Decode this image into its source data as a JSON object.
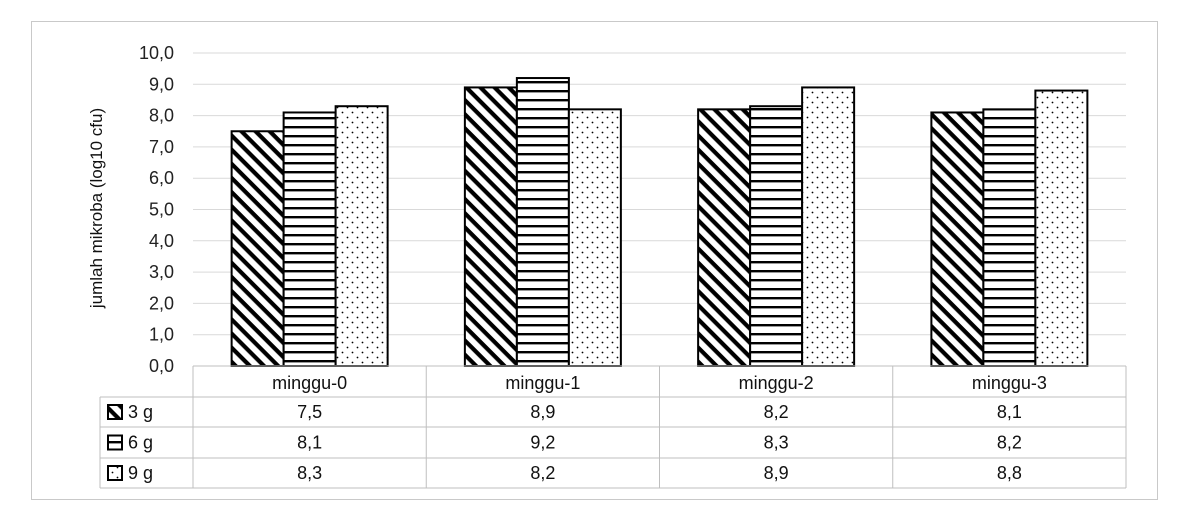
{
  "chart_data": {
    "type": "bar",
    "title": "",
    "xlabel": "",
    "ylabel": "jumlah mikroba (log10 cfu)",
    "ylim": [
      0,
      10
    ],
    "ytick_step": 1,
    "ytick_labels": [
      "0,0",
      "1,0",
      "2,0",
      "3,0",
      "4,0",
      "5,0",
      "6,0",
      "7,0",
      "8,0",
      "9,0",
      "10,0"
    ],
    "grid": true,
    "categories": [
      "minggu-0",
      "minggu-1",
      "minggu-2",
      "minggu-3"
    ],
    "series": [
      {
        "name": "3 g",
        "pattern": "diagonal",
        "values": [
          7.5,
          8.9,
          8.2,
          8.1
        ],
        "labels": [
          "7,5",
          "8,9",
          "8,2",
          "8,1"
        ]
      },
      {
        "name": "6 g",
        "pattern": "horizontal",
        "values": [
          8.1,
          9.2,
          8.3,
          8.2
        ],
        "labels": [
          "8,1",
          "9,2",
          "8,3",
          "8,2"
        ]
      },
      {
        "name": "9 g",
        "pattern": "dotted",
        "values": [
          8.3,
          8.2,
          8.9,
          8.8
        ],
        "labels": [
          "8,3",
          "8,2",
          "8,9",
          "8,8"
        ]
      }
    ],
    "legend_position": "data-table"
  },
  "colors": {
    "bar_stroke": "#000000",
    "gridline": "#d9d9d9",
    "table_line": "#bfbfbf",
    "frame": "#c9c9c9"
  }
}
